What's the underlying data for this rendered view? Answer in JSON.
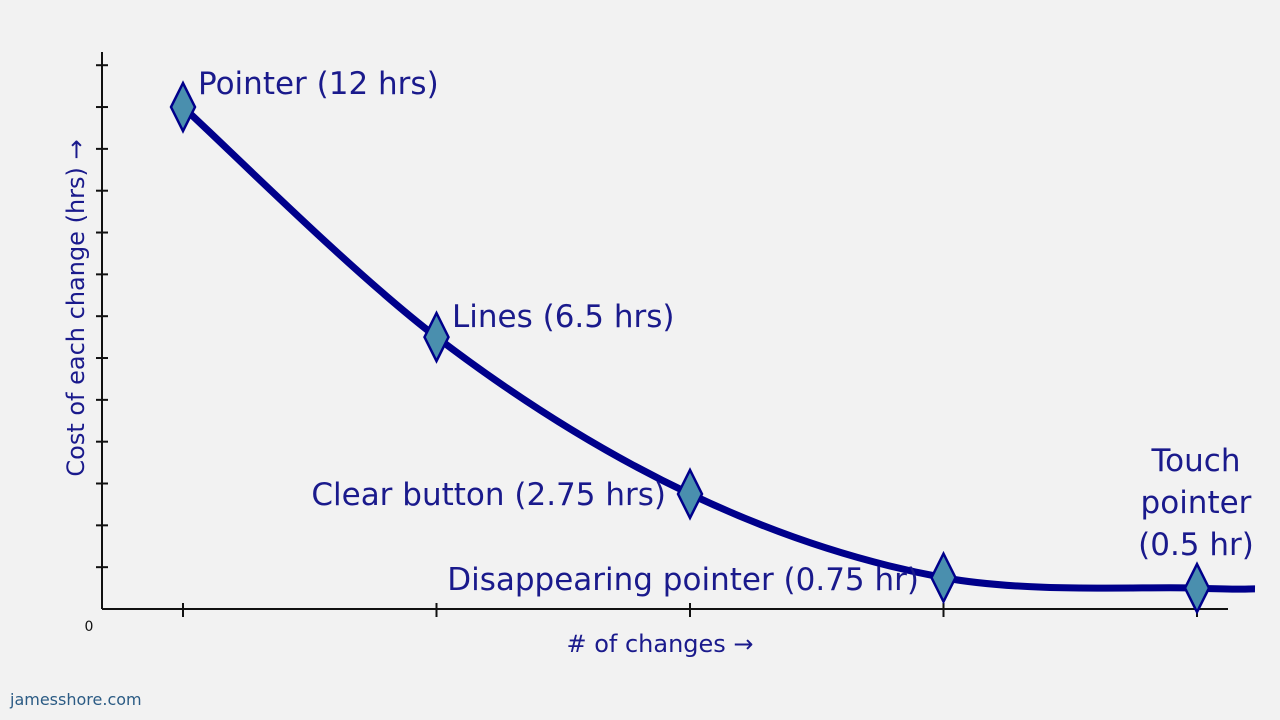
{
  "credit": "jamesshore.com",
  "chart_data": {
    "type": "line",
    "title": "",
    "xlabel": "# of changes →",
    "ylabel": "Cost of each change (hrs) →",
    "origin_label": "0",
    "ylim": [
      0,
      12.8
    ],
    "grid": false,
    "colors": {
      "line": "#00008b",
      "marker_fill": "#4a8fae",
      "marker_stroke": "#00008b",
      "text": "#1a1a8c"
    },
    "points": [
      {
        "x": 1,
        "y": 12,
        "label": "Pointer (12 hrs)"
      },
      {
        "x": 2,
        "y": 6.5,
        "label": "Lines (6.5 hrs)"
      },
      {
        "x": 3,
        "y": 2.75,
        "label": "Clear button (2.75 hrs)"
      },
      {
        "x": 4,
        "y": 0.75,
        "label": "Disappearing pointer (0.75 hr)"
      },
      {
        "x": 5,
        "y": 0.5,
        "label": [
          "Touch",
          "pointer",
          "(0.5 hr)"
        ]
      }
    ]
  }
}
